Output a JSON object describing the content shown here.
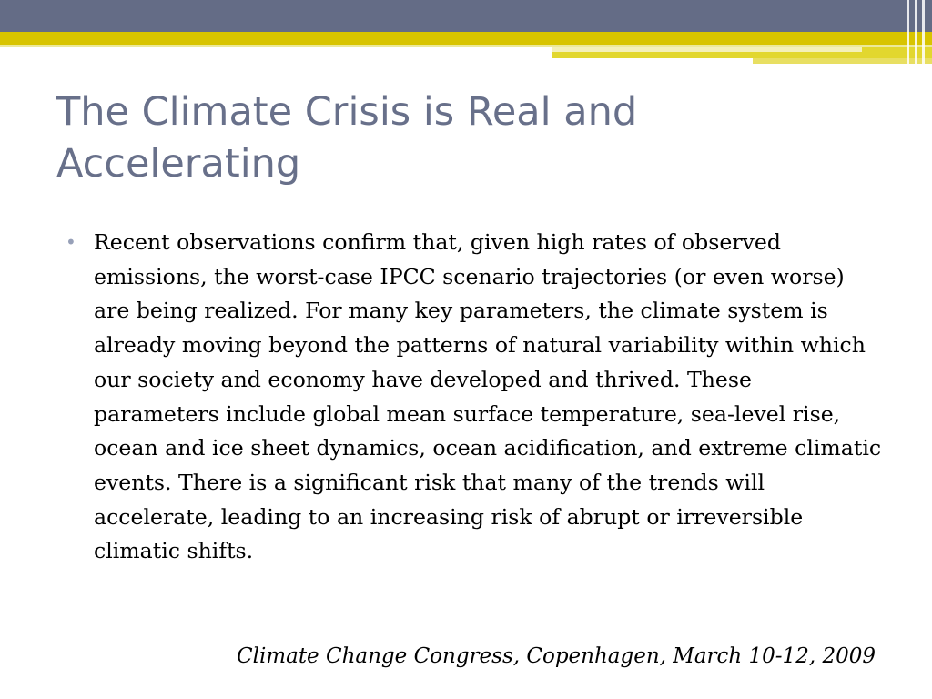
{
  "slide": {
    "title": "The Climate Crisis is Real and Accelerating",
    "bullet_glyph": "•",
    "body": "Recent observations confirm that, given high rates of observed emissions, the worst-case IPCC scenario trajectories (or even worse) are being realized. For many key parameters, the climate system is already moving beyond the patterns of natural variability within which our society and economy have developed and thrived. These parameters include global mean surface temperature, sea-level rise, ocean and ice sheet dynamics, ocean acidification, and extreme climatic events. There is a significant risk that many of the trends will accelerate, leading to an increasing risk of abrupt or irreversible climatic shifts.",
    "citation": "Climate Change Congress, Copenhagen, March 10-12, 2009"
  },
  "colors": {
    "band_slate": "#646c86",
    "band_gold": "#d8c400",
    "title": "#68708a",
    "bullet": "#97a0b8",
    "text": "#000000"
  }
}
